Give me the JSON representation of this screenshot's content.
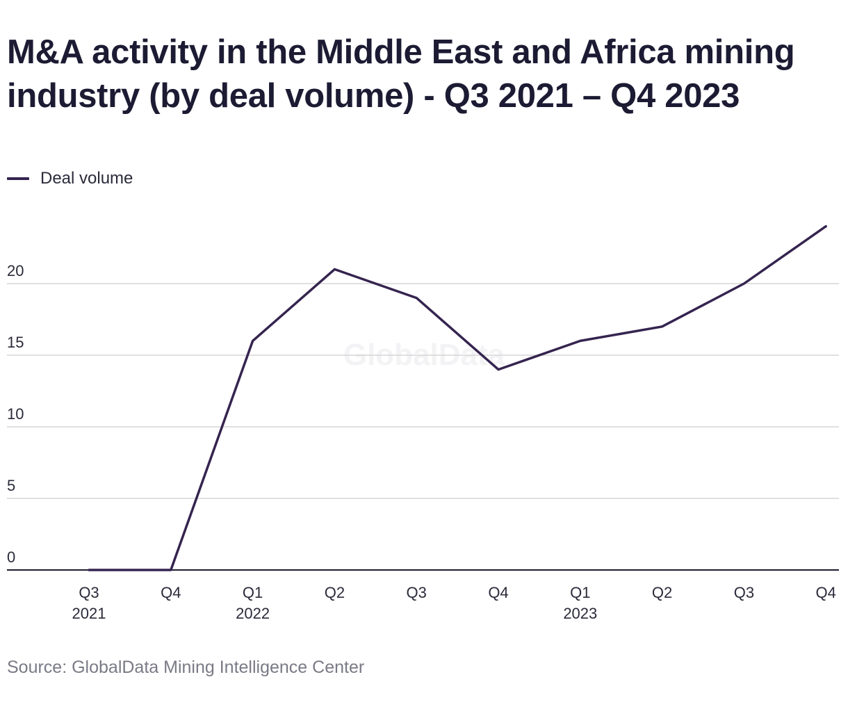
{
  "title": "M&A activity in the Middle East and Africa mining industry (by deal volume) - Q3 2021 – Q4 2023",
  "legend": {
    "label": "Deal volume"
  },
  "source": "Source: GlobalData Mining Intelligence Center",
  "watermark": "GlobalData",
  "colors": {
    "line": "#35244f",
    "grid": "#d6d6d6",
    "axis": "#1b1b2e",
    "text": "#2a2a3a",
    "source": "#7a7a86",
    "watermark": "#f3f3f5"
  },
  "chart_data": {
    "type": "line",
    "title": "M&A activity in the Middle East and Africa mining industry (by deal volume) - Q3 2021 – Q4 2023",
    "xlabel": "",
    "ylabel": "",
    "categories": [
      "Q3 2021",
      "Q4 2021",
      "Q1 2022",
      "Q2 2022",
      "Q3 2022",
      "Q4 2022",
      "Q1 2023",
      "Q2 2023",
      "Q3 2023",
      "Q4 2023"
    ],
    "tick_labels": [
      {
        "quarter": "Q3",
        "year": "2021"
      },
      {
        "quarter": "Q4",
        "year": ""
      },
      {
        "quarter": "Q1",
        "year": "2022"
      },
      {
        "quarter": "Q2",
        "year": ""
      },
      {
        "quarter": "Q3",
        "year": ""
      },
      {
        "quarter": "Q4",
        "year": ""
      },
      {
        "quarter": "Q1",
        "year": "2023"
      },
      {
        "quarter": "Q2",
        "year": ""
      },
      {
        "quarter": "Q3",
        "year": ""
      },
      {
        "quarter": "Q4",
        "year": ""
      }
    ],
    "series": [
      {
        "name": "Deal volume",
        "values": [
          0,
          0,
          16,
          21,
          19,
          14,
          16,
          17,
          20,
          24
        ]
      }
    ],
    "ylim": [
      0,
      24
    ],
    "yticks": [
      0,
      5,
      10,
      15,
      20
    ],
    "grid": true,
    "legend_position": "top-left"
  }
}
